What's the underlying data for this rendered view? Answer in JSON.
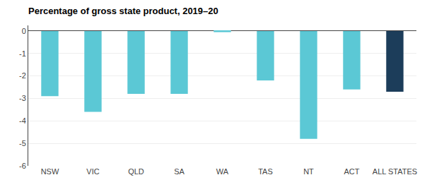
{
  "chart_data": {
    "type": "bar",
    "title": "Percentage of gross state product, 2019–20",
    "categories": [
      "NSW",
      "VIC",
      "QLD",
      "SA",
      "WA",
      "TAS",
      "NT",
      "ACT",
      "ALL STATES"
    ],
    "values": [
      -2.9,
      -3.6,
      -2.8,
      -2.8,
      -0.05,
      -2.2,
      -4.8,
      -2.6,
      -2.7
    ],
    "colors": [
      "#5BC8D5",
      "#5BC8D5",
      "#5BC8D5",
      "#5BC8D5",
      "#5BC8D5",
      "#5BC8D5",
      "#5BC8D5",
      "#5BC8D5",
      "#1C3D5A"
    ],
    "ylim": [
      -6,
      0.25
    ],
    "yticks": [
      0,
      -1,
      -2,
      -3,
      -4,
      -5,
      -6
    ],
    "grid": true
  }
}
